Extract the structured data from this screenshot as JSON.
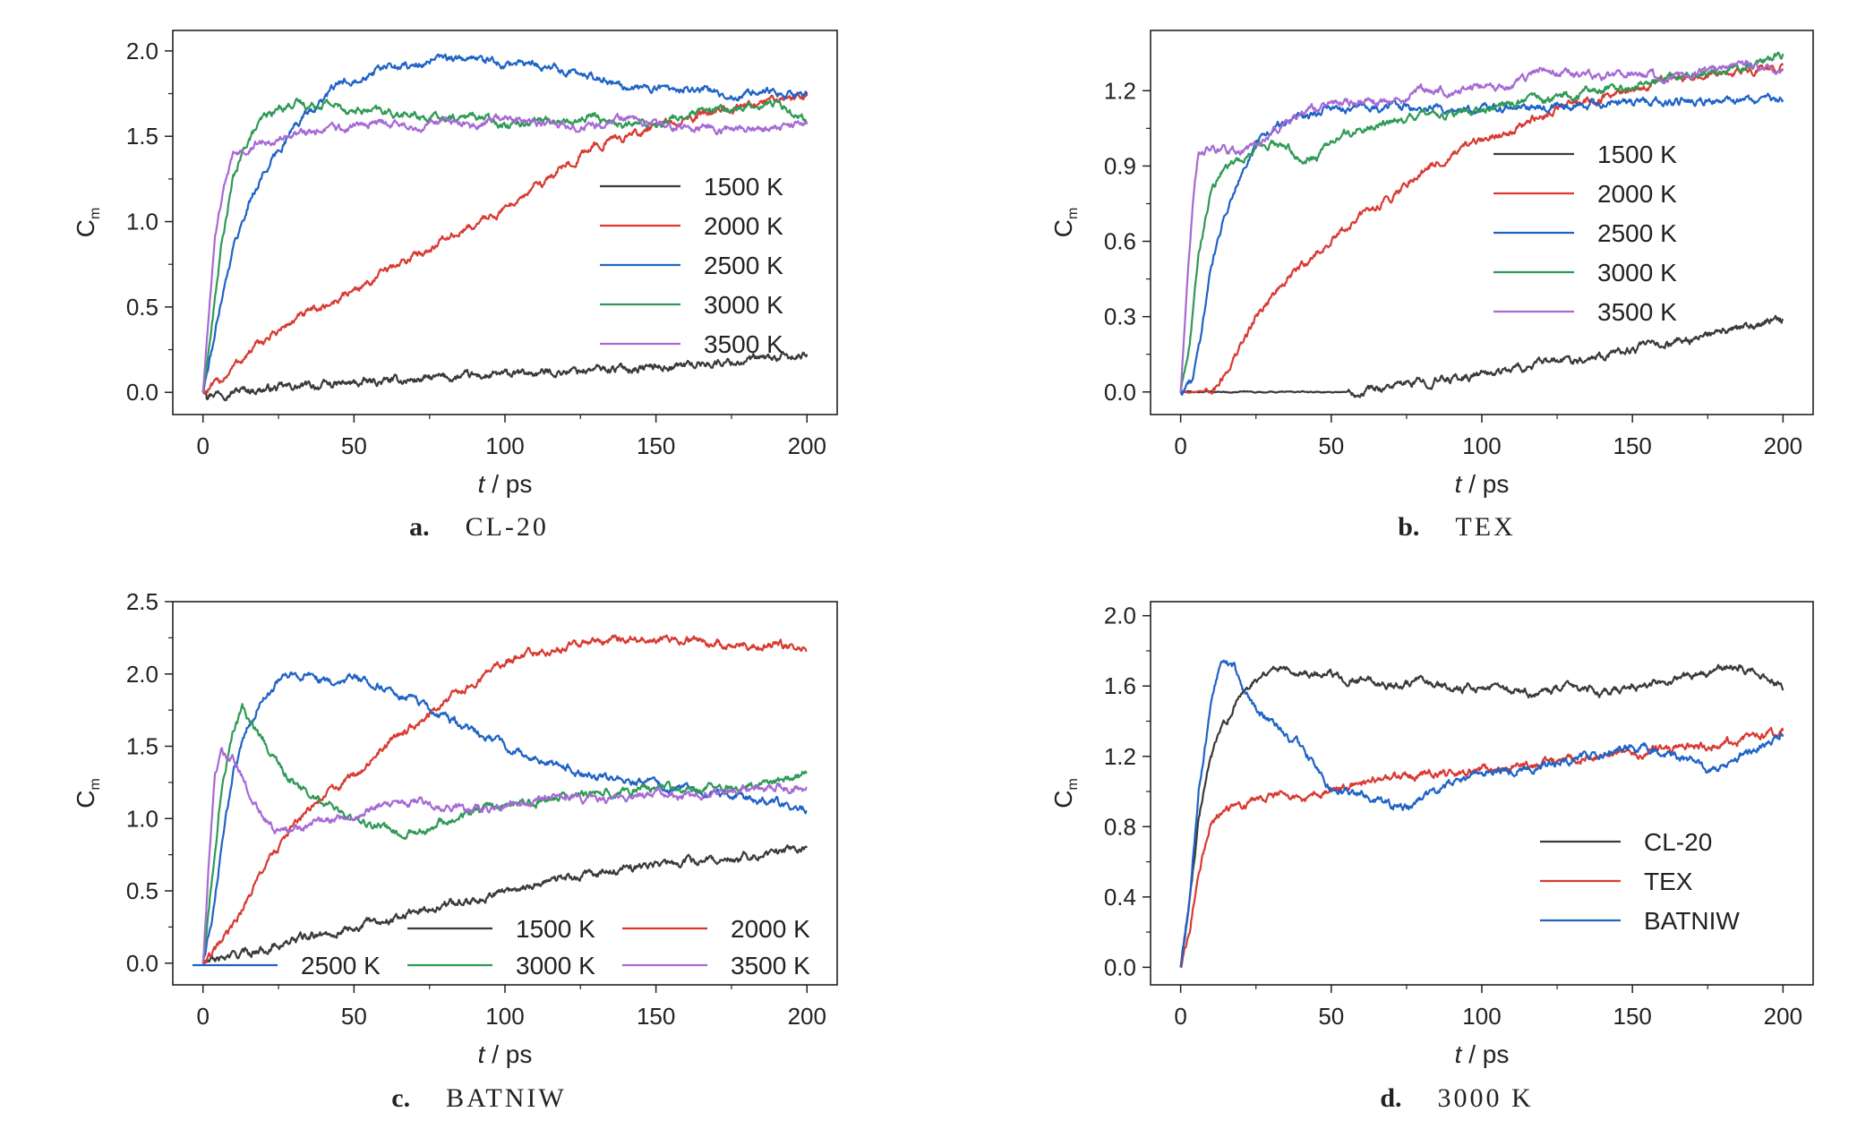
{
  "colors": {
    "1500 K": "#3a3a3a",
    "2000 K": "#d83a32",
    "2500 K": "#1f63c6",
    "3000 K": "#2f9a55",
    "3500 K": "#a66ad4",
    "CL-20": "#3a3a3a",
    "TEX": "#d83a32",
    "BATNIW": "#1f63c6"
  },
  "chart_data": [
    {
      "type": "line",
      "panel_letter": "a.",
      "caption": "CL-20",
      "xlabel_italic": "t",
      "xlabel_unit": " / ps",
      "ylabel": "C",
      "ylabel_sub": "m",
      "xlim": [
        -10,
        210
      ],
      "ylim": [
        -0.13,
        2.12
      ],
      "xticks": [
        0,
        50,
        100,
        150,
        200
      ],
      "yticks": [
        0.0,
        0.5,
        1.0,
        1.5,
        2.0
      ],
      "ytick_labels": [
        "0.0",
        "0.5",
        "1.0",
        "1.5",
        "2.0"
      ],
      "legend_position": "right",
      "series": [
        {
          "name": "1500 K",
          "x": [
            0,
            20,
            50,
            75,
            100,
            125,
            150,
            175,
            200
          ],
          "y": [
            0.0,
            0.02,
            0.05,
            0.08,
            0.1,
            0.13,
            0.15,
            0.18,
            0.21
          ]
        },
        {
          "name": "2000 K",
          "x": [
            0,
            5,
            10,
            20,
            30,
            40,
            50,
            60,
            75,
            90,
            100,
            110,
            120,
            130,
            140,
            150,
            160,
            175,
            190,
            200
          ],
          "y": [
            0.0,
            0.05,
            0.15,
            0.3,
            0.42,
            0.5,
            0.6,
            0.7,
            0.85,
            0.98,
            1.08,
            1.2,
            1.33,
            1.45,
            1.5,
            1.55,
            1.6,
            1.66,
            1.72,
            1.75
          ]
        },
        {
          "name": "2500 K",
          "x": [
            0,
            3,
            6,
            10,
            15,
            20,
            25,
            30,
            35,
            40,
            45,
            50,
            60,
            70,
            80,
            90,
            100,
            110,
            120,
            130,
            140,
            150,
            160,
            175,
            190,
            200
          ],
          "y": [
            0.0,
            0.25,
            0.55,
            0.85,
            1.1,
            1.28,
            1.42,
            1.55,
            1.65,
            1.72,
            1.8,
            1.85,
            1.9,
            1.92,
            1.95,
            1.95,
            1.93,
            1.92,
            1.88,
            1.85,
            1.8,
            1.78,
            1.78,
            1.75,
            1.75,
            1.75
          ]
        },
        {
          "name": "3000 K",
          "x": [
            0,
            3,
            6,
            10,
            15,
            20,
            25,
            30,
            35,
            40,
            50,
            60,
            70,
            80,
            90,
            100,
            110,
            120,
            130,
            140,
            150,
            160,
            175,
            190,
            200
          ],
          "y": [
            0.0,
            0.4,
            0.85,
            1.25,
            1.48,
            1.6,
            1.66,
            1.7,
            1.68,
            1.7,
            1.65,
            1.64,
            1.62,
            1.6,
            1.62,
            1.58,
            1.6,
            1.58,
            1.62,
            1.56,
            1.58,
            1.62,
            1.66,
            1.7,
            1.6
          ]
        },
        {
          "name": "3500 K",
          "x": [
            0,
            2,
            4,
            7,
            10,
            15,
            20,
            25,
            30,
            40,
            50,
            60,
            70,
            80,
            90,
            100,
            110,
            120,
            130,
            140,
            150,
            160,
            175,
            190,
            200
          ],
          "y": [
            0.0,
            0.5,
            0.9,
            1.2,
            1.38,
            1.45,
            1.48,
            1.5,
            1.5,
            1.53,
            1.56,
            1.58,
            1.55,
            1.6,
            1.57,
            1.62,
            1.58,
            1.56,
            1.55,
            1.6,
            1.58,
            1.55,
            1.54,
            1.55,
            1.57
          ]
        }
      ]
    },
    {
      "type": "line",
      "panel_letter": "b.",
      "caption": "TEX",
      "xlabel_italic": "t",
      "xlabel_unit": " / ps",
      "ylabel": "C",
      "ylabel_sub": "m",
      "xlim": [
        -10,
        210
      ],
      "ylim": [
        -0.09,
        1.44
      ],
      "xticks": [
        0,
        50,
        100,
        150,
        200
      ],
      "yticks": [
        0.0,
        0.3,
        0.6,
        0.9,
        1.2
      ],
      "ytick_labels": [
        "0.0",
        "0.3",
        "0.6",
        "0.9",
        "1.2"
      ],
      "legend_position": "center-right",
      "series": [
        {
          "name": "1500 K",
          "x": [
            0,
            30,
            55,
            75,
            100,
            125,
            150,
            175,
            200
          ],
          "y": [
            0.0,
            0.0,
            0.0,
            0.03,
            0.07,
            0.12,
            0.17,
            0.22,
            0.29
          ]
        },
        {
          "name": "2000 K",
          "x": [
            0,
            8,
            12,
            15,
            20,
            25,
            30,
            40,
            50,
            60,
            70,
            80,
            90,
            100,
            110,
            120,
            130,
            140,
            150,
            160,
            175,
            190,
            200
          ],
          "y": [
            0.0,
            0.0,
            0.03,
            0.08,
            0.18,
            0.3,
            0.38,
            0.5,
            0.6,
            0.7,
            0.78,
            0.88,
            0.94,
            1.0,
            1.05,
            1.1,
            1.15,
            1.17,
            1.2,
            1.24,
            1.26,
            1.28,
            1.3
          ]
        },
        {
          "name": "2500 K",
          "x": [
            0,
            4,
            7,
            10,
            15,
            20,
            25,
            30,
            40,
            50,
            60,
            80,
            100,
            125,
            150,
            175,
            200
          ],
          "y": [
            0.0,
            0.05,
            0.25,
            0.5,
            0.72,
            0.88,
            0.98,
            1.04,
            1.1,
            1.13,
            1.14,
            1.13,
            1.12,
            1.14,
            1.15,
            1.16,
            1.16
          ]
        },
        {
          "name": "3000 K",
          "x": [
            0,
            3,
            6,
            10,
            15,
            20,
            25,
            30,
            35,
            40,
            45,
            50,
            60,
            70,
            80,
            90,
            100,
            110,
            120,
            130,
            140,
            150,
            160,
            175,
            190,
            200
          ],
          "y": [
            0.0,
            0.2,
            0.55,
            0.8,
            0.9,
            0.93,
            0.97,
            1.0,
            0.97,
            0.93,
            0.93,
            1.0,
            1.05,
            1.08,
            1.1,
            1.1,
            1.12,
            1.15,
            1.16,
            1.18,
            1.2,
            1.22,
            1.24,
            1.27,
            1.3,
            1.35
          ]
        },
        {
          "name": "3500 K",
          "x": [
            0,
            2,
            4,
            6,
            10,
            15,
            20,
            25,
            30,
            40,
            50,
            60,
            70,
            80,
            90,
            100,
            110,
            120,
            130,
            140,
            150,
            160,
            175,
            190,
            200
          ],
          "y": [
            0.0,
            0.4,
            0.75,
            0.95,
            0.97,
            0.97,
            0.96,
            0.98,
            1.03,
            1.1,
            1.15,
            1.16,
            1.15,
            1.2,
            1.2,
            1.22,
            1.22,
            1.28,
            1.27,
            1.25,
            1.27,
            1.25,
            1.28,
            1.3,
            1.28
          ]
        }
      ]
    },
    {
      "type": "line",
      "panel_letter": "c.",
      "caption": "BATNIW",
      "xlabel_italic": "t",
      "xlabel_unit": " / ps",
      "ylabel": "C",
      "ylabel_sub": "m",
      "xlim": [
        -10,
        210
      ],
      "ylim": [
        -0.15,
        2.5
      ],
      "xticks": [
        0,
        50,
        100,
        150,
        200
      ],
      "yticks": [
        0.0,
        0.5,
        1.0,
        1.5,
        2.0,
        2.5
      ],
      "ytick_labels": [
        "0.0",
        "0.5",
        "1.0",
        "1.5",
        "2.0",
        "2.5"
      ],
      "legend_position": "bottom",
      "series": [
        {
          "name": "1500 K",
          "x": [
            0,
            10,
            20,
            30,
            40,
            50,
            60,
            75,
            90,
            100,
            110,
            125,
            140,
            150,
            160,
            175,
            190,
            200
          ],
          "y": [
            0.0,
            0.05,
            0.1,
            0.16,
            0.2,
            0.25,
            0.3,
            0.38,
            0.45,
            0.5,
            0.55,
            0.6,
            0.65,
            0.68,
            0.7,
            0.73,
            0.77,
            0.8
          ]
        },
        {
          "name": "2000 K",
          "x": [
            0,
            5,
            10,
            15,
            20,
            30,
            40,
            50,
            60,
            70,
            80,
            90,
            100,
            110,
            120,
            130,
            140,
            150,
            160,
            175,
            190,
            200
          ],
          "y": [
            0.0,
            0.1,
            0.25,
            0.45,
            0.65,
            0.95,
            1.15,
            1.3,
            1.5,
            1.65,
            1.8,
            1.95,
            2.08,
            2.15,
            2.18,
            2.22,
            2.25,
            2.25,
            2.24,
            2.2,
            2.2,
            2.18
          ]
        },
        {
          "name": "2500 K",
          "x": [
            0,
            3,
            6,
            10,
            15,
            20,
            25,
            30,
            35,
            40,
            50,
            60,
            70,
            80,
            90,
            100,
            110,
            120,
            130,
            140,
            150,
            160,
            175,
            190,
            200
          ],
          "y": [
            0.0,
            0.3,
            0.8,
            1.3,
            1.65,
            1.85,
            1.95,
            2.0,
            1.98,
            1.95,
            1.97,
            1.92,
            1.8,
            1.7,
            1.6,
            1.5,
            1.42,
            1.35,
            1.3,
            1.27,
            1.23,
            1.2,
            1.15,
            1.1,
            1.07
          ]
        },
        {
          "name": "3000 K",
          "x": [
            0,
            3,
            6,
            10,
            13,
            15,
            20,
            25,
            30,
            40,
            50,
            60,
            70,
            80,
            90,
            100,
            110,
            120,
            130,
            140,
            150,
            160,
            175,
            190,
            200
          ],
          "y": [
            0.0,
            0.6,
            1.2,
            1.6,
            1.75,
            1.7,
            1.55,
            1.38,
            1.25,
            1.1,
            1.0,
            0.92,
            0.9,
            0.98,
            1.05,
            1.1,
            1.12,
            1.14,
            1.18,
            1.2,
            1.22,
            1.2,
            1.22,
            1.25,
            1.3
          ]
        },
        {
          "name": "3500 K",
          "x": [
            0,
            2,
            4,
            6,
            10,
            15,
            20,
            25,
            30,
            40,
            50,
            60,
            70,
            80,
            90,
            100,
            110,
            120,
            130,
            140,
            150,
            160,
            175,
            190,
            200
          ],
          "y": [
            0.0,
            0.7,
            1.3,
            1.45,
            1.4,
            1.2,
            1.0,
            0.9,
            0.92,
            0.98,
            1.02,
            1.1,
            1.12,
            1.08,
            1.05,
            1.1,
            1.12,
            1.15,
            1.12,
            1.14,
            1.18,
            1.15,
            1.2,
            1.22,
            1.2
          ]
        }
      ]
    },
    {
      "type": "line",
      "panel_letter": "d.",
      "caption": "3000 K",
      "xlabel_italic": "t",
      "xlabel_unit": " / ps",
      "ylabel": "C",
      "ylabel_sub": "m",
      "xlim": [
        -10,
        210
      ],
      "ylim": [
        -0.1,
        2.08
      ],
      "xticks": [
        0,
        50,
        100,
        150,
        200
      ],
      "yticks": [
        0.0,
        0.4,
        0.8,
        1.2,
        1.6,
        2.0
      ],
      "ytick_labels": [
        "0.0",
        "0.4",
        "0.8",
        "1.2",
        "1.6",
        "2.0"
      ],
      "legend_position": "center-right",
      "series": [
        {
          "name": "CL-20",
          "x": [
            0,
            3,
            6,
            10,
            15,
            20,
            25,
            30,
            35,
            40,
            50,
            60,
            70,
            80,
            90,
            100,
            110,
            120,
            130,
            140,
            150,
            160,
            175,
            185,
            200
          ],
          "y": [
            0.0,
            0.4,
            0.85,
            1.2,
            1.4,
            1.55,
            1.65,
            1.7,
            1.72,
            1.68,
            1.66,
            1.64,
            1.6,
            1.62,
            1.58,
            1.6,
            1.58,
            1.55,
            1.6,
            1.56,
            1.6,
            1.62,
            1.68,
            1.72,
            1.6
          ]
        },
        {
          "name": "TEX",
          "x": [
            0,
            3,
            6,
            10,
            15,
            20,
            25,
            30,
            35,
            40,
            50,
            60,
            70,
            80,
            90,
            100,
            110,
            120,
            130,
            140,
            150,
            160,
            175,
            190,
            200
          ],
          "y": [
            0.0,
            0.2,
            0.55,
            0.82,
            0.9,
            0.93,
            0.96,
            1.0,
            0.98,
            0.95,
            1.0,
            1.05,
            1.08,
            1.1,
            1.1,
            1.12,
            1.14,
            1.16,
            1.18,
            1.2,
            1.22,
            1.24,
            1.26,
            1.3,
            1.35
          ]
        },
        {
          "name": "BATNIW",
          "x": [
            0,
            3,
            6,
            10,
            13,
            15,
            18,
            20,
            25,
            30,
            40,
            45,
            50,
            60,
            70,
            75,
            80,
            90,
            100,
            110,
            120,
            130,
            140,
            150,
            160,
            170,
            175,
            185,
            200
          ],
          "y": [
            0.0,
            0.4,
            1.0,
            1.5,
            1.72,
            1.75,
            1.72,
            1.6,
            1.45,
            1.4,
            1.25,
            1.15,
            1.0,
            0.98,
            0.92,
            0.9,
            0.95,
            1.05,
            1.1,
            1.12,
            1.15,
            1.18,
            1.2,
            1.25,
            1.22,
            1.18,
            1.12,
            1.2,
            1.32
          ]
        }
      ]
    }
  ]
}
